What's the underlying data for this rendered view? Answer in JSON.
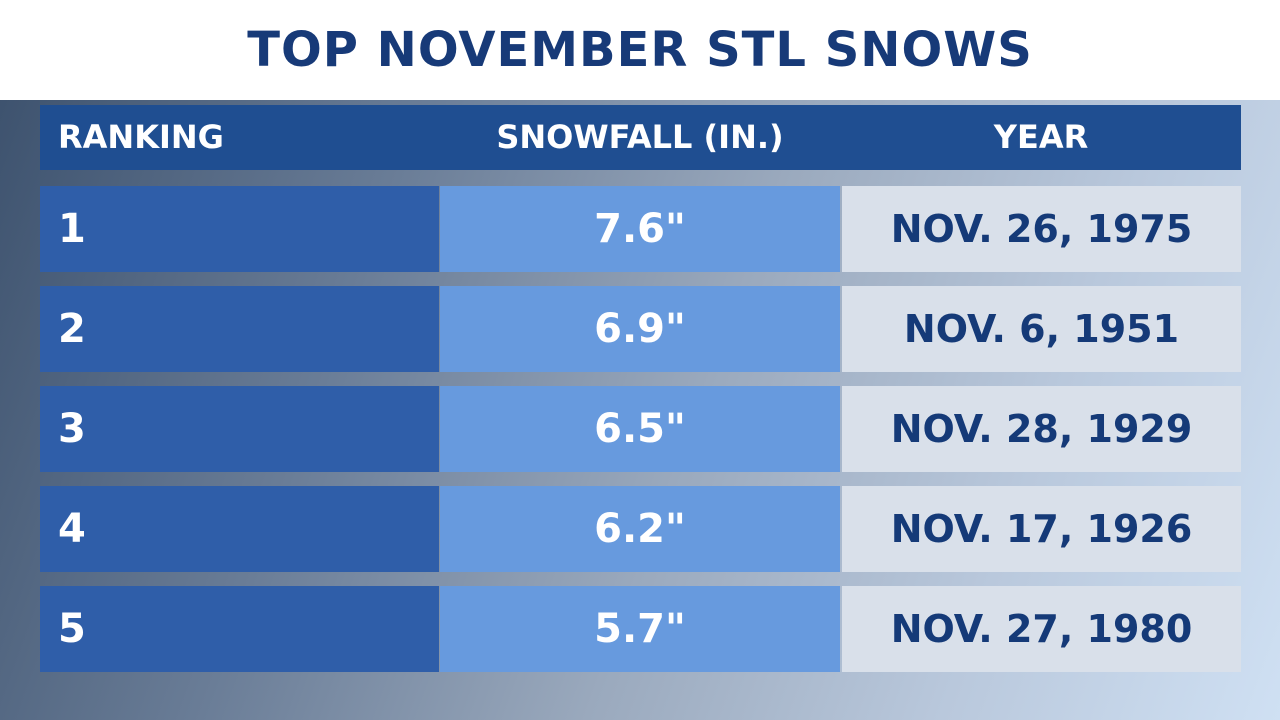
{
  "title": "TOP NOVEMBER STL SNOWS",
  "table": {
    "headers": {
      "ranking": "RANKING",
      "snowfall": "SNOWFALL (IN.)",
      "year": "YEAR"
    },
    "rows": [
      {
        "rank": "1",
        "snowfall": "7.6\"",
        "date": "NOV. 26, 1975"
      },
      {
        "rank": "2",
        "snowfall": "6.9\"",
        "date": "NOV. 6, 1951"
      },
      {
        "rank": "3",
        "snowfall": "6.5\"",
        "date": "NOV. 28, 1929"
      },
      {
        "rank": "4",
        "snowfall": "6.2\"",
        "date": "NOV. 17, 1926"
      },
      {
        "rank": "5",
        "snowfall": "5.7\"",
        "date": "NOV. 27, 1980"
      }
    ]
  },
  "colors": {
    "title_text": "#173a78",
    "header_bg": "#1f4e91",
    "rank_cell_bg": "#2f5ea9",
    "snowfall_cell_bg": "#679ade",
    "year_cell_bg": "#d9e0ea",
    "year_text": "#153a78"
  }
}
